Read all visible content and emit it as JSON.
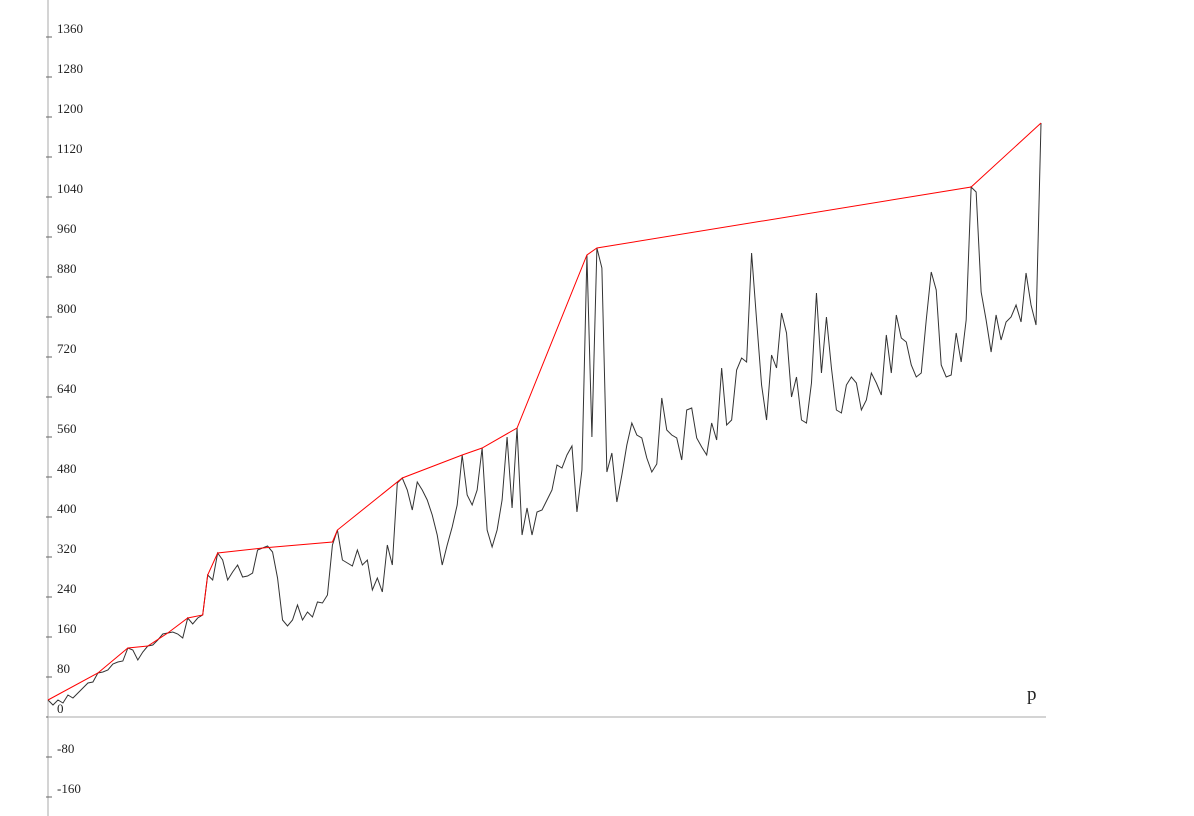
{
  "chart_data": {
    "type": "line",
    "x_label": "p",
    "xlim": [
      0,
      200
    ],
    "ylim": [
      -198,
      1434
    ],
    "yticks": [
      -160,
      -80,
      0,
      80,
      160,
      240,
      320,
      400,
      480,
      560,
      640,
      720,
      800,
      880,
      960,
      1040,
      1120,
      1200,
      1280,
      1360
    ],
    "series": [
      {
        "color": "#333333",
        "values": [
          34,
          24,
          34,
          28,
          44,
          38,
          48,
          58,
          68,
          70,
          88,
          90,
          94,
          106,
          110,
          112,
          138,
          134,
          114,
          130,
          142,
          144,
          154,
          166,
          168,
          170,
          166,
          158,
          198,
          186,
          198,
          204,
          284,
          274,
          328,
          314,
          274,
          290,
          304,
          280,
          282,
          288,
          334,
          338,
          342,
          330,
          278,
          194,
          182,
          194,
          224,
          194,
          210,
          200,
          230,
          228,
          244,
          344,
          374,
          314,
          308,
          302,
          334,
          304,
          314,
          254,
          278,
          250,
          344,
          304,
          468,
          478,
          454,
          414,
          470,
          454,
          434,
          404,
          364,
          304,
          344,
          380,
          424,
          524,
          444,
          424,
          454,
          538,
          374,
          340,
          374,
          434,
          560,
          418,
          578,
          364,
          418,
          364,
          410,
          414,
          434,
          454,
          504,
          498,
          524,
          542,
          410,
          494,
          924,
          560,
          938,
          898,
          490,
          528,
          430,
          484,
          544,
          588,
          564,
          558,
          518,
          490,
          506,
          638,
          574,
          564,
          558,
          514,
          614,
          618,
          558,
          540,
          524,
          588,
          554,
          698,
          584,
          594,
          694,
          718,
          710,
          928,
          794,
          664,
          594,
          724,
          698,
          808,
          768,
          640,
          680,
          594,
          588,
          668,
          848,
          688,
          800,
          698,
          614,
          608,
          664,
          680,
          668,
          614,
          634,
          688,
          668,
          644,
          764,
          688,
          804,
          758,
          750,
          704,
          680,
          688,
          794,
          890,
          854,
          704,
          680,
          684,
          768,
          710,
          794,
          1060,
          1050,
          850,
          794,
          730,
          804,
          754,
          790,
          800,
          824,
          790,
          888,
          824,
          784,
          1188
        ]
      },
      {
        "color": "#ff0000",
        "x": [
          0,
          10,
          16,
          20,
          24,
          28,
          31,
          32,
          34,
          43,
          57,
          58,
          71,
          83,
          87,
          94,
          108,
          110,
          185,
          199
        ],
        "values": [
          34,
          88,
          138,
          142,
          168,
          198,
          204,
          284,
          328,
          338,
          350,
          374,
          478,
          524,
          538,
          578,
          924,
          938,
          1060,
          1188
        ]
      }
    ]
  }
}
